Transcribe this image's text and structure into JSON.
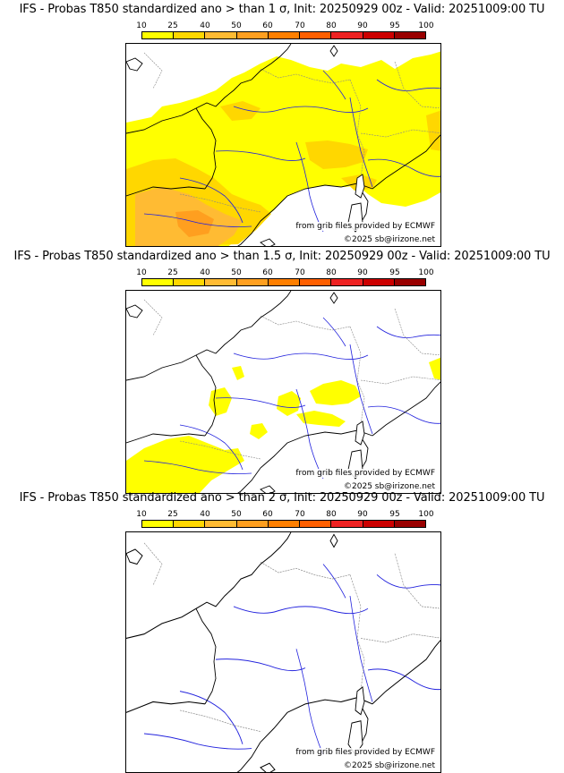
{
  "colorbar": {
    "labels": [
      "10",
      "25",
      "40",
      "50",
      "60",
      "70",
      "80",
      "90",
      "95",
      "100"
    ],
    "colors": [
      "#ffff00",
      "#ffd700",
      "#ffbb33",
      "#ff9f1f",
      "#ff7f00",
      "#ff5f00",
      "#ee2222",
      "#cc0000",
      "#990000",
      "#550000"
    ]
  },
  "panels": [
    {
      "title": "IFS - Probas T850  standardized ano > than 1 σ, Init: 20250929 00z - Valid: 20251009:00 TU",
      "threshold": "1 σ"
    },
    {
      "title": "IFS - Probas T850  standardized ano > than 1.5 σ, Init: 20250929 00z - Valid: 20251009:00 TU",
      "threshold": "1.5 σ"
    },
    {
      "title": "IFS - Probas T850  standardized ano > than 2 σ, Init: 20250929 00z - Valid: 20251009:00 TU",
      "threshold": "2 σ"
    }
  ],
  "credit_source": "from grib files provided by ECMWF",
  "credit_copyright": "©2025 sb@irizone.net",
  "colors": {
    "land_line": "#000000",
    "border": "#888888",
    "river": "#2222dd"
  }
}
